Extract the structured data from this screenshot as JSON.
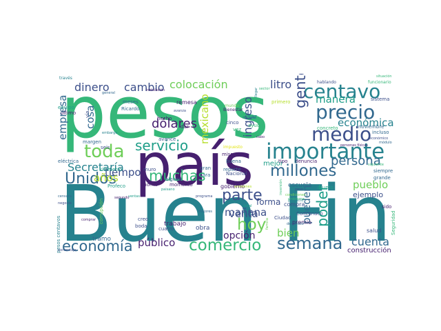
{
  "palette": {
    "dark_purple": "#46206f",
    "indigo": "#3c4f8a",
    "blue": "#31688e",
    "teal_blue": "#26828e",
    "teal": "#1f9e89",
    "green": "#35b779",
    "light_green": "#6ece58",
    "lime": "#b5de2b",
    "yellow": "#e2e418"
  },
  "words": [
    {
      "text": "pesos",
      "color": "#35b779"
    },
    {
      "text": "Buen Fin",
      "color": "#26828e"
    },
    {
      "text": "país",
      "color": "#46206f"
    },
    {
      "text": "centavo",
      "color": "#26828e"
    },
    {
      "text": "importante",
      "color": "#26828e"
    },
    {
      "text": "precio",
      "color": "#31688e"
    },
    {
      "text": "medio",
      "color": "#3c4f8a"
    },
    {
      "text": "millones",
      "color": "#31688e"
    },
    {
      "text": "toda",
      "color": "#6ece58"
    },
    {
      "text": "Unidos",
      "color": "#31688e"
    },
    {
      "text": "parte",
      "color": "#3c4f8a"
    },
    {
      "text": "semana",
      "color": "#31688e"
    },
    {
      "text": "comercio",
      "color": "#35b779"
    },
    {
      "text": "economía",
      "color": "#31688e"
    },
    {
      "text": "hoy",
      "color": "#6ece58"
    },
    {
      "text": "gente",
      "color": "#3c4f8a"
    },
    {
      "text": "poder",
      "color": "#1f9e89"
    },
    {
      "text": "muchas",
      "color": "#35b779"
    },
    {
      "text": "servicio",
      "color": "#1f9e89"
    },
    {
      "text": "persona",
      "color": "#31688e"
    },
    {
      "text": "colocación",
      "color": "#6ece58"
    },
    {
      "text": "cambio",
      "color": "#3c4f8a"
    },
    {
      "text": "dinero",
      "color": "#3c4f8a"
    },
    {
      "text": "dólares",
      "color": "#46206f"
    },
    {
      "text": "litro",
      "color": "#3c4f8a"
    },
    {
      "text": "manera",
      "color": "#1f9e89"
    },
    {
      "text": "económica",
      "color": "#26828e"
    },
    {
      "text": "empresa",
      "color": "#31688e"
    },
    {
      "text": "cosa",
      "color": "#31688e"
    },
    {
      "text": "Secretaría",
      "color": "#26828e"
    },
    {
      "text": "tiempo",
      "color": "#3c4f8a"
    },
    {
      "text": "años",
      "color": "#b5de2b"
    },
    {
      "text": "mexicano",
      "color": "#b5de2b"
    },
    {
      "text": "ingreso",
      "color": "#3c4f8a"
    },
    {
      "text": "venta",
      "color": "#3c4f8a"
    },
    {
      "text": "mañana",
      "color": "#3c4f8a"
    },
    {
      "text": "pueblo",
      "color": "#6ece58"
    },
    {
      "text": "cuenta",
      "color": "#31688e"
    },
    {
      "text": "público",
      "color": "#46206f"
    },
    {
      "text": "opción",
      "color": "#46206f"
    },
    {
      "text": "bien",
      "color": "#6ece58"
    },
    {
      "text": "pueden",
      "color": "#31688e"
    },
    {
      "text": "ejemplo",
      "color": "#3c4f8a"
    },
    {
      "text": "forma",
      "color": "#3c4f8a"
    },
    {
      "text": "mejor",
      "color": "#1f9e89"
    },
    {
      "text": "construcción",
      "color": "#46206f"
    },
    {
      "text": "escuela",
      "color": "#31688e"
    },
    {
      "text": "compra",
      "color": "#3c4f8a"
    },
    {
      "text": "trabajo",
      "color": "#46206f"
    },
    {
      "text": "obra",
      "color": "#3c4f8a"
    },
    {
      "text": "gobierno",
      "color": "#46206f"
    },
    {
      "text": "tramo",
      "color": "#31688e"
    },
    {
      "text": "salud",
      "color": "#3c4f8a"
    },
    {
      "text": "premio",
      "color": "#46206f"
    },
    {
      "text": "pesos centavos",
      "color": "#26828e"
    },
    {
      "text": "corrupción",
      "color": "#6ece58"
    },
    {
      "text": "kilómetro",
      "color": "#1f9e89"
    },
    {
      "text": "eléctrica",
      "color": "#31688e"
    },
    {
      "text": "margen",
      "color": "#31688e"
    },
    {
      "text": "seis",
      "color": "#3c4f8a"
    },
    {
      "text": "hecho",
      "color": "#46206f"
    },
    {
      "text": "avance",
      "color": "#3c4f8a"
    },
    {
      "text": "remesa",
      "color": "#46206f"
    },
    {
      "text": "vía",
      "color": "#3c4f8a"
    },
    {
      "text": "ahorita",
      "color": "#46206f"
    },
    {
      "text": "momento",
      "color": "#46206f"
    },
    {
      "text": "Nacional",
      "color": "#3c4f8a"
    },
    {
      "text": "buena",
      "color": "#31688e"
    },
    {
      "text": "gran",
      "color": "#31688e"
    },
    {
      "text": "cara",
      "color": "#31688e"
    },
    {
      "text": "SAT",
      "color": "#26828e"
    },
    {
      "text": "ayuda",
      "color": "#35b779"
    },
    {
      "text": "cinco",
      "color": "#3c4f8a"
    },
    {
      "text": "vez",
      "color": "#35b779"
    },
    {
      "text": "mismo",
      "color": "#46206f"
    },
    {
      "text": "tipo",
      "color": "#46206f"
    },
    {
      "text": "denuncia",
      "color": "#46206f"
    },
    {
      "text": "reporte",
      "color": "#31688e"
    },
    {
      "text": "alguna",
      "color": "#31688e"
    },
    {
      "text": "muro",
      "color": "#3c4f8a"
    },
    {
      "text": "dar",
      "color": "#46206f"
    },
    {
      "text": "siempre",
      "color": "#31688e"
    },
    {
      "text": "grande",
      "color": "#31688e"
    },
    {
      "text": "asunto",
      "color": "#1f9e89"
    },
    {
      "text": "Concanaco",
      "color": "#3c4f8a"
    },
    {
      "text": "Ciudad",
      "color": "#3c4f8a"
    },
    {
      "text": "creo",
      "color": "#3c4f8a"
    },
    {
      "text": "boda",
      "color": "#3c4f8a"
    },
    {
      "text": "cuatro",
      "color": "#3c4f8a"
    },
    {
      "text": "sido",
      "color": "#46206f"
    },
    {
      "text": "Seguridad",
      "color": "#35b779"
    },
    {
      "text": "Ricardo",
      "color": "#31688e"
    },
    {
      "text": "meses",
      "color": "#31688e"
    },
    {
      "text": "equipo",
      "color": "#1f9e89"
    },
    {
      "text": "último",
      "color": "#46206f"
    },
    {
      "text": "través",
      "color": "#26828e"
    },
    {
      "text": "hablando",
      "color": "#3c4f8a"
    },
    {
      "text": "funcionario",
      "color": "#35b779"
    },
    {
      "text": "primero",
      "color": "#b5de2b"
    },
    {
      "text": "sistema",
      "color": "#3c4f8a"
    },
    {
      "text": "incluso",
      "color": "#31688e"
    },
    {
      "text": "noviembre",
      "color": "#31688e"
    },
    {
      "text": "concreto",
      "color": "#35b779"
    },
    {
      "text": "Bienestar",
      "color": "#46206f"
    },
    {
      "text": "mundo",
      "color": "#6ece58"
    },
    {
      "text": "instalación",
      "color": "#46206f"
    },
    {
      "text": "impuesto",
      "color": "#e2e418"
    },
    {
      "text": "personas físicas",
      "color": "#46206f"
    },
    {
      "text": "Profeco",
      "color": "#1f9e89"
    },
    {
      "text": "general",
      "color": "#31688e"
    },
    {
      "text": "sector",
      "color": "#35b779"
    },
    {
      "text": "censura",
      "color": "#31688e"
    },
    {
      "text": "negocio",
      "color": "#3c4f8a"
    },
    {
      "text": "comprar",
      "color": "#46206f"
    },
    {
      "text": "porcentaje",
      "color": "#3c4f8a"
    },
    {
      "text": "desarrollo",
      "color": "#31688e"
    },
    {
      "text": "programa",
      "color": "#3c4f8a"
    },
    {
      "text": "mejores",
      "color": "#31688e"
    },
    {
      "text": "total",
      "color": "#1f9e89"
    },
    {
      "text": "producto",
      "color": "#26828e"
    },
    {
      "text": "problema",
      "color": "#35b779"
    },
    {
      "text": "condiciones",
      "color": "#6ece58"
    },
    {
      "text": "ventas",
      "color": "#1f9e89"
    },
    {
      "text": "emisiones",
      "color": "#b5de2b"
    },
    {
      "text": "económico",
      "color": "#3c4f8a"
    },
    {
      "text": "módulo",
      "color": "#31688e"
    },
    {
      "text": "segundo",
      "color": "#46206f"
    },
    {
      "text": "embargo",
      "color": "#26828e"
    },
    {
      "text": "paisano",
      "color": "#1f9e89"
    },
    {
      "text": "avanza",
      "color": "#3c4f8a"
    },
    {
      "text": "cabo",
      "color": "#46206f"
    },
    {
      "text": "peso",
      "color": "#3c4f8a"
    },
    {
      "text": "siguiente",
      "color": "#35b779"
    },
    {
      "text": "situación",
      "color": "#35b779"
    },
    {
      "text": "durante",
      "color": "#31688e"
    },
    {
      "text": "familia",
      "color": "#6ece58"
    },
    {
      "text": "inversión",
      "color": "#35b779"
    },
    {
      "text": "llegar",
      "color": "#26828e"
    }
  ]
}
